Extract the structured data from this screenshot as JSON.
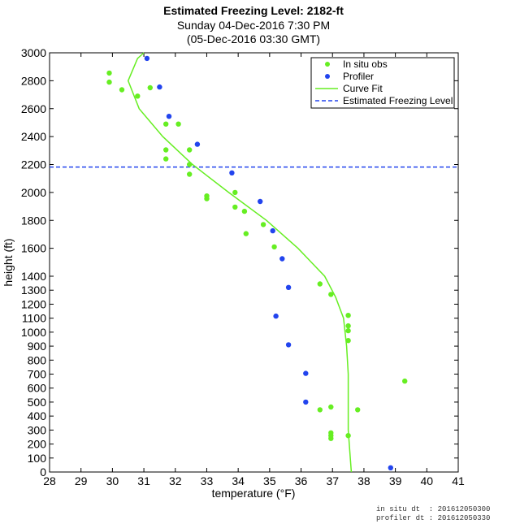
{
  "header": {
    "title": "Estimated Freezing Level: 2182-ft",
    "subtitle_local": "Sunday 04-Dec-2016  7:30 PM",
    "subtitle_gmt": "(05-Dec-2016 03:30 GMT)"
  },
  "footer": {
    "insitu_dt": "in situ dt  : 201612050300",
    "profiler_dt": "profiler dt : 201612050330"
  },
  "chart_data": {
    "type": "scatter",
    "title": "Estimated Freezing Level: 2182-ft",
    "xlabel": "temperature (°F)",
    "ylabel": "height (ft)",
    "xlim": [
      28,
      41
    ],
    "x_ticks": [
      28,
      29,
      30,
      31,
      32,
      33,
      34,
      35,
      36,
      37,
      38,
      39,
      40,
      41
    ],
    "y_ticks": [
      0,
      100,
      200,
      300,
      400,
      500,
      600,
      700,
      800,
      900,
      1000,
      1100,
      1200,
      1300,
      1400,
      1600,
      1800,
      2000,
      2200,
      2400,
      2600,
      2800,
      3000
    ],
    "y_scale": "piecewise-linear: 0-1400 ft and 1400-3000 ft compressed",
    "grid": false,
    "legend_position": "top-right",
    "freezing_level_ft": 2182,
    "series": [
      {
        "name": "In situ obs",
        "marker": "dot",
        "color": "#66ee22",
        "points": [
          [
            29.9,
            2855
          ],
          [
            29.9,
            2790
          ],
          [
            30.3,
            2735
          ],
          [
            30.8,
            2690
          ],
          [
            31.2,
            2750
          ],
          [
            31.7,
            2490
          ],
          [
            32.1,
            2490
          ],
          [
            31.7,
            2305
          ],
          [
            32.45,
            2305
          ],
          [
            31.7,
            2240
          ],
          [
            32.45,
            2200
          ],
          [
            32.45,
            2130
          ],
          [
            33.0,
            1975
          ],
          [
            33.0,
            1955
          ],
          [
            33.9,
            2000
          ],
          [
            33.9,
            1895
          ],
          [
            34.2,
            1865
          ],
          [
            34.8,
            1770
          ],
          [
            34.25,
            1705
          ],
          [
            35.15,
            1610
          ],
          [
            36.6,
            1345
          ],
          [
            36.95,
            1270
          ],
          [
            37.5,
            1120
          ],
          [
            37.5,
            1045
          ],
          [
            37.5,
            1010
          ],
          [
            37.5,
            940
          ],
          [
            39.3,
            650
          ],
          [
            36.95,
            465
          ],
          [
            36.6,
            445
          ],
          [
            37.8,
            445
          ],
          [
            36.95,
            280
          ],
          [
            36.95,
            260
          ],
          [
            36.95,
            240
          ],
          [
            37.5,
            260
          ]
        ]
      },
      {
        "name": "Profiler",
        "marker": "dot",
        "color": "#2244ee",
        "points": [
          [
            31.1,
            2960
          ],
          [
            31.5,
            2755
          ],
          [
            31.8,
            2545
          ],
          [
            32.7,
            2345
          ],
          [
            33.8,
            2140
          ],
          [
            34.7,
            1935
          ],
          [
            35.1,
            1725
          ],
          [
            35.4,
            1525
          ],
          [
            35.6,
            1320
          ],
          [
            35.2,
            1115
          ],
          [
            35.6,
            910
          ],
          [
            36.15,
            705
          ],
          [
            36.15,
            500
          ],
          [
            38.85,
            30
          ]
        ]
      },
      {
        "name": "Curve Fit",
        "type": "line",
        "color": "#66ee22",
        "points": [
          [
            37.6,
            0
          ],
          [
            37.55,
            150
          ],
          [
            37.5,
            300
          ],
          [
            37.5,
            500
          ],
          [
            37.5,
            700
          ],
          [
            37.45,
            900
          ],
          [
            37.35,
            1100
          ],
          [
            37.1,
            1250
          ],
          [
            36.75,
            1400
          ],
          [
            35.9,
            1600
          ],
          [
            34.9,
            1800
          ],
          [
            33.7,
            2000
          ],
          [
            32.55,
            2200
          ],
          [
            31.6,
            2400
          ],
          [
            30.85,
            2600
          ],
          [
            30.5,
            2800
          ],
          [
            30.8,
            2960
          ],
          [
            31.0,
            3000
          ]
        ]
      },
      {
        "name": "Estimated Freezing Level",
        "type": "hline",
        "color": "#2244ee",
        "value": 2182
      }
    ]
  }
}
